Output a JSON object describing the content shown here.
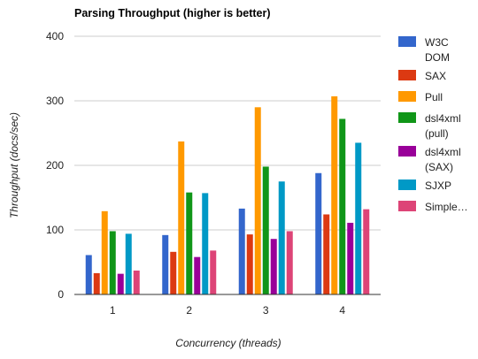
{
  "chart_data": {
    "type": "bar",
    "title": "Parsing Throughput (higher is better)",
    "xlabel": "Concurrency (threads)",
    "ylabel": "Throughput (docs/sec)",
    "categories": [
      "1",
      "2",
      "3",
      "4"
    ],
    "ylim": [
      0,
      400
    ],
    "yticks": [
      0,
      100,
      200,
      300,
      400
    ],
    "grid": true,
    "legend_position": "right",
    "series": [
      {
        "name": "W3C DOM",
        "legend_lines": [
          "W3C",
          "DOM"
        ],
        "color": "#3366cc",
        "values": [
          61,
          92,
          133,
          188
        ]
      },
      {
        "name": "SAX",
        "legend_lines": [
          "SAX"
        ],
        "color": "#dc3912",
        "values": [
          33,
          66,
          93,
          124
        ]
      },
      {
        "name": "Pull",
        "legend_lines": [
          "Pull"
        ],
        "color": "#ff9900",
        "values": [
          129,
          237,
          290,
          307
        ]
      },
      {
        "name": "dsl4xml (pull)",
        "legend_lines": [
          "dsl4xml",
          "(pull)"
        ],
        "color": "#109618",
        "values": [
          98,
          158,
          198,
          272
        ]
      },
      {
        "name": "dsl4xml (SAX)",
        "legend_lines": [
          "dsl4xml",
          "(SAX)"
        ],
        "color": "#990099",
        "values": [
          32,
          58,
          86,
          111
        ]
      },
      {
        "name": "SJXP",
        "legend_lines": [
          "SJXP"
        ],
        "color": "#0099c6",
        "values": [
          94,
          157,
          175,
          235
        ]
      },
      {
        "name": "Simple…",
        "legend_lines": [
          "Simple…"
        ],
        "color": "#dd4477",
        "values": [
          37,
          68,
          98,
          132
        ]
      }
    ]
  }
}
